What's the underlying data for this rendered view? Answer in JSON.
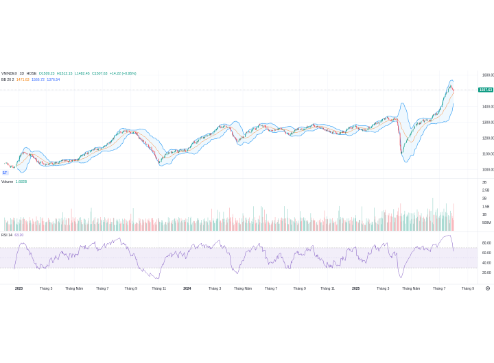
{
  "header": {
    "symbol": "VNINDEX",
    "interval": "1D",
    "exchange": "HOSE",
    "open": "O1509.23",
    "high": "H1512.15",
    "low": "L1482.45",
    "close": "C1507.63",
    "change": "+14.22 (+0.95%)"
  },
  "bb_legend": {
    "name": "BB 20 2",
    "basis": "1471.63",
    "upper": "1566.72",
    "lower": "1376.54"
  },
  "volume_legend": {
    "name": "Volume",
    "value": "1.682B"
  },
  "rsi_legend": {
    "name": "RSI 14",
    "value": "63.20"
  },
  "colors": {
    "up": "#089981",
    "down": "#f23645",
    "bb_band": "#2196f3",
    "bb_basis": "#ff6d00",
    "rsi": "#7e57c2",
    "band_fill": "#ede7f6"
  },
  "chart_data": [
    {
      "type": "candlestick",
      "name": "price",
      "ylim": [
        950,
        1630
      ],
      "yticks": [
        "1600.00",
        "1500.00",
        "1400.00",
        "1300.00",
        "1200.00",
        "1100.00",
        "1000.00"
      ],
      "last_value_label": "1507.63",
      "anchors": [
        [
          "2022-12-01",
          1040
        ],
        [
          "2022-12-20",
          1010
        ],
        [
          "2023-01-05",
          1100
        ],
        [
          "2023-01-20",
          1110
        ],
        [
          "2023-02-10",
          1050
        ],
        [
          "2023-03-01",
          1030
        ],
        [
          "2023-04-01",
          1050
        ],
        [
          "2023-05-01",
          1060
        ],
        [
          "2023-06-01",
          1110
        ],
        [
          "2023-06-20",
          1130
        ],
        [
          "2023-07-15",
          1160
        ],
        [
          "2023-08-05",
          1230
        ],
        [
          "2023-08-25",
          1250
        ],
        [
          "2023-09-10",
          1240
        ],
        [
          "2023-09-25",
          1180
        ],
        [
          "2023-10-20",
          1120
        ],
        [
          "2023-11-01",
          1045
        ],
        [
          "2023-11-15",
          1090
        ],
        [
          "2023-12-01",
          1110
        ],
        [
          "2023-12-31",
          1130
        ],
        [
          "2024-01-20",
          1175
        ],
        [
          "2024-02-20",
          1225
        ],
        [
          "2024-03-15",
          1270
        ],
        [
          "2024-04-01",
          1280
        ],
        [
          "2024-04-20",
          1170
        ],
        [
          "2024-05-10",
          1240
        ],
        [
          "2024-06-10",
          1280
        ],
        [
          "2024-06-30",
          1250
        ],
        [
          "2024-07-20",
          1260
        ],
        [
          "2024-08-10",
          1215
        ],
        [
          "2024-08-25",
          1250
        ],
        [
          "2024-09-10",
          1270
        ],
        [
          "2024-10-01",
          1280
        ],
        [
          "2024-10-20",
          1260
        ],
        [
          "2024-11-10",
          1225
        ],
        [
          "2024-12-01",
          1250
        ],
        [
          "2024-12-31",
          1260
        ],
        [
          "2025-01-20",
          1245
        ],
        [
          "2025-02-15",
          1290
        ],
        [
          "2025-03-10",
          1320
        ],
        [
          "2025-03-31",
          1320
        ],
        [
          "2025-04-09",
          1110
        ],
        [
          "2025-04-20",
          1180
        ],
        [
          "2025-05-15",
          1290
        ],
        [
          "2025-06-10",
          1320
        ],
        [
          "2025-06-30",
          1370
        ],
        [
          "2025-07-15",
          1480
        ],
        [
          "2025-07-25",
          1530
        ],
        [
          "2025-08-01",
          1505
        ]
      ],
      "last_ohlc": {
        "open": 1509.23,
        "high": 1512.15,
        "low": 1482.45,
        "close": 1507.63
      }
    },
    {
      "type": "bar",
      "name": "volume",
      "ylim": [
        0,
        3000000000
      ],
      "yticks": [
        "3B",
        "2.5B",
        "2B",
        "1.5B",
        "1B",
        "500M"
      ],
      "last_value": 1682000000
    },
    {
      "type": "line",
      "name": "rsi",
      "ylim": [
        0,
        100
      ],
      "yticks": [
        "80.00",
        "60.00",
        "40.00",
        "20.00"
      ],
      "bands": [
        30,
        70
      ],
      "last_value": 63.2
    }
  ],
  "xaxis": {
    "ticks": [
      {
        "date": "2023-01-01",
        "label": "2023",
        "bold": true
      },
      {
        "date": "2023-03-01",
        "label": "Tháng 3",
        "bold": false
      },
      {
        "date": "2023-05-01",
        "label": "Tháng Năm",
        "bold": false
      },
      {
        "date": "2023-07-01",
        "label": "Tháng 7",
        "bold": false
      },
      {
        "date": "2023-09-01",
        "label": "Tháng 9",
        "bold": false
      },
      {
        "date": "2023-11-01",
        "label": "Tháng 11",
        "bold": false
      },
      {
        "date": "2024-01-01",
        "label": "2024",
        "bold": true
      },
      {
        "date": "2024-03-01",
        "label": "Tháng 3",
        "bold": false
      },
      {
        "date": "2024-05-01",
        "label": "Tháng Năm",
        "bold": false
      },
      {
        "date": "2024-07-01",
        "label": "Tháng 7",
        "bold": false
      },
      {
        "date": "2024-09-01",
        "label": "Tháng 9",
        "bold": false
      },
      {
        "date": "2024-11-01",
        "label": "Tháng 11",
        "bold": false
      },
      {
        "date": "2025-01-01",
        "label": "2025",
        "bold": true
      },
      {
        "date": "2025-03-01",
        "label": "Tháng 3",
        "bold": false
      },
      {
        "date": "2025-05-01",
        "label": "Tháng Năm",
        "bold": false
      },
      {
        "date": "2025-07-01",
        "label": "Tháng 7",
        "bold": false
      },
      {
        "date": "2025-09-01",
        "label": "Tháng 9",
        "bold": false
      }
    ]
  },
  "icons": {
    "settings": "gear-icon",
    "logo": "tradingview-logo-icon"
  }
}
